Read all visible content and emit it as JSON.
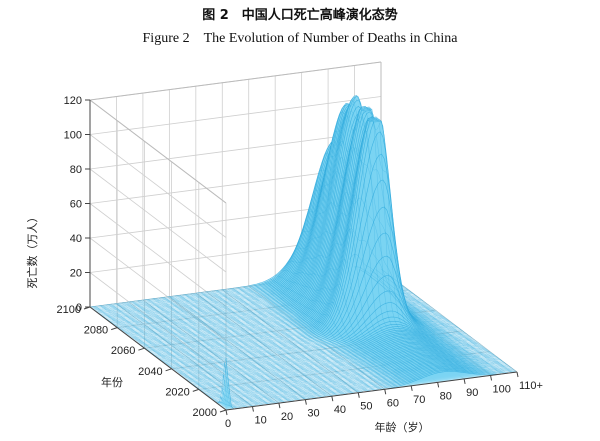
{
  "title_cn": "图 2　中国人口死亡高峰演化态势",
  "title_en": "Figure 2　The Evolution of Number of Deaths in China",
  "colors": {
    "surface": "#7ad3f2",
    "surface_dark": "#2fa9dc",
    "grid": "#cfcfcf",
    "axis": "#444444"
  },
  "chart_data": {
    "type": "surface3d",
    "z_label": "死亡数（万人）",
    "y_label": "年份",
    "x_label": "年龄（岁）",
    "z_ticks": [
      "0",
      "20",
      "40",
      "60",
      "80",
      "100",
      "120"
    ],
    "y_ticks": [
      "2000",
      "2020",
      "2040",
      "2060",
      "2080",
      "2100"
    ],
    "x_ticks": [
      "0",
      "10",
      "20",
      "30",
      "40",
      "50",
      "60",
      "70",
      "80",
      "90",
      "100",
      "110+"
    ],
    "zlim": [
      0,
      120
    ],
    "ylim": [
      2000,
      2100
    ],
    "xlim": [
      0,
      110
    ],
    "grid": true,
    "ridges": [
      {
        "year": 2052,
        "age": 84,
        "peak": 111
      },
      {
        "year": 2063,
        "age": 86,
        "peak": 103
      },
      {
        "year": 2074,
        "age": 88,
        "peak": 96
      },
      {
        "year": 2084,
        "age": 89,
        "peak": 88
      },
      {
        "year": 2095,
        "age": 90,
        "peak": 70
      }
    ],
    "infant_peak": {
      "year": 2000,
      "age": 0,
      "value": 30
    }
  }
}
